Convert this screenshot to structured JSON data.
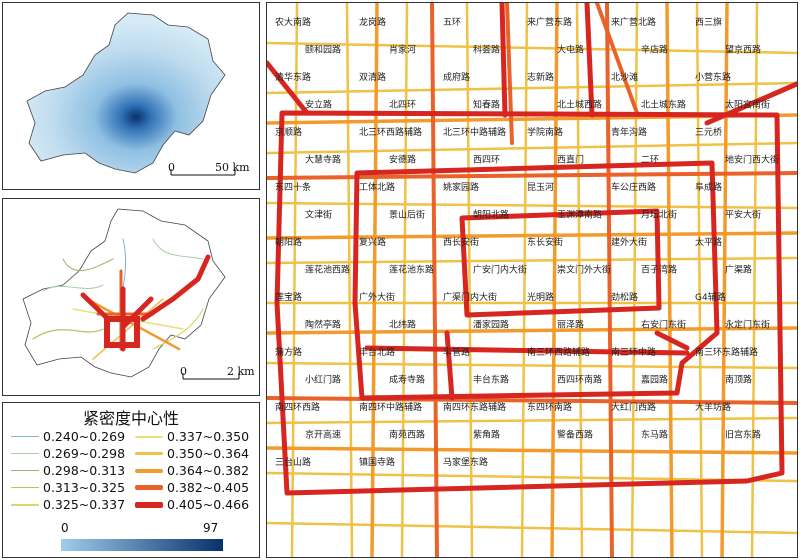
{
  "panel_top": {
    "scale": {
      "zero": "0",
      "value": "50 km"
    }
  },
  "panel_middle": {
    "scale": {
      "zero": "0",
      "value": "2 km"
    }
  },
  "legend": {
    "title": "紧密度中心性",
    "items": [
      {
        "label": "0.240~0.269",
        "color": "#7fb5c9"
      },
      {
        "label": "0.337~0.350",
        "color": "#e8e07a"
      },
      {
        "label": "0.269~0.298",
        "color": "#a6cfa6"
      },
      {
        "label": "0.350~0.364",
        "color": "#f0c145"
      },
      {
        "label": "0.298~0.313",
        "color": "#9ab76a"
      },
      {
        "label": "0.364~0.382",
        "color": "#f29a2c"
      },
      {
        "label": "0.313~0.325",
        "color": "#b4c55f"
      },
      {
        "label": "0.382~0.405",
        "color": "#e8622a"
      },
      {
        "label": "0.325~0.337",
        "color": "#d9d66a"
      },
      {
        "label": "0.405~0.466",
        "color": "#d7261f"
      }
    ],
    "gradient": {
      "min": "0",
      "max": "97",
      "from": "#9fcdeb",
      "to": "#08306b"
    }
  },
  "main_map": {
    "labels": [
      "农大南路",
      "龙岗路",
      "五环",
      "来广营东路",
      "来广营北路",
      "西三旗",
      "颐和园路",
      "肖家河",
      "科荟路",
      "大屯路",
      "辛店路",
      "望京西路",
      "清华东路",
      "双清路",
      "成府路",
      "志新路",
      "北沙滩",
      "小营东路",
      "安立路",
      "北四环",
      "知春路",
      "北土城西路",
      "北土城东路",
      "太阳宫南街",
      "京顺路",
      "北三环西路辅路",
      "北三环中路辅路",
      "学院南路",
      "青年沟路",
      "三元桥",
      "大慧寺路",
      "安德路",
      "西四环",
      "西直门",
      "二环",
      "地安门西大街",
      "东四十条",
      "工体北路",
      "姚家园路",
      "昆玉河",
      "车公庄西路",
      "阜成路",
      "文津街",
      "景山后街",
      "朝阳北路",
      "玉渊潭南路",
      "月坛北街",
      "平安大街",
      "朝阳路",
      "复兴路",
      "西长安街",
      "东长安街",
      "建外大街",
      "太平路",
      "莲花池西路",
      "莲花池东路",
      "广安门内大街",
      "崇文门外大街",
      "百子湾路",
      "广渠路",
      "莲宝路",
      "广外大街",
      "广渠门内大街",
      "光明路",
      "劲松路",
      "G4辅路",
      "陶然亭路",
      "北纬路",
      "潘家园路",
      "丽泽路",
      "右安门东街",
      "永定门东街",
      "蒲方路",
      "丰台北路",
      "丰管路",
      "南三环西路辅路",
      "南三环中路",
      "南三环东路辅路",
      "小红门路",
      "成寿寺路",
      "丰台东路",
      "西四环南路",
      "嘉园路",
      "南顶路",
      "南四环西路",
      "南四环中路辅路",
      "南四环东路辅路",
      "东四环南路",
      "大红门西路",
      "大羊坊路",
      "京开高速",
      "南苑西路",
      "紫角路",
      "警备西路",
      "东马路",
      "旧宫东路",
      "三台山路",
      "镇国寺路",
      "马家堡东路"
    ]
  }
}
